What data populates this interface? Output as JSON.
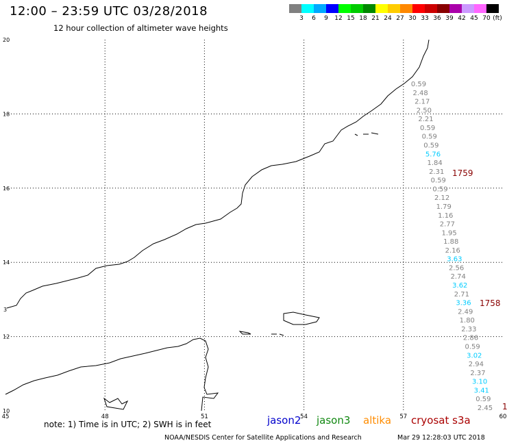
{
  "header": {
    "title": "12:00 – 23:59 UTC 03/28/2018",
    "subtitle": "12 hour collection of altimeter wave heights"
  },
  "legend": {
    "unit": "(ft)",
    "colors": [
      "#808080",
      "#00ffff",
      "#00aaff",
      "#0000ff",
      "#00ff00",
      "#00cc00",
      "#008800",
      "#ffff00",
      "#ffcc00",
      "#ff8800",
      "#ff0000",
      "#cc0000",
      "#880000",
      "#aa00aa",
      "#cc99ff",
      "#ff66ff",
      "#000000"
    ],
    "labels": [
      "3",
      "6",
      "9",
      "12",
      "15",
      "18",
      "21",
      "24",
      "27",
      "30",
      "33",
      "36",
      "39",
      "42",
      "45",
      "70"
    ]
  },
  "axes": {
    "x_ticks": [
      "45",
      "48",
      "51",
      "54",
      "57",
      "60"
    ],
    "y_ticks": [
      "10",
      "12",
      "14",
      "16",
      "18",
      "20"
    ],
    "left_edge_labels": [
      "3"
    ]
  },
  "track": {
    "color_gray": "#808080",
    "color_cyan": "#00ccff",
    "points": [
      {
        "value": "0.59",
        "color": "gray"
      },
      {
        "value": "2.48",
        "color": "gray"
      },
      {
        "value": "2.17",
        "color": "gray"
      },
      {
        "value": "2.50",
        "color": "gray"
      },
      {
        "value": "2.21",
        "color": "gray"
      },
      {
        "value": "0.59",
        "color": "gray"
      },
      {
        "value": "0.59",
        "color": "gray"
      },
      {
        "value": "0.59",
        "color": "gray"
      },
      {
        "value": "5.76",
        "color": "cyan"
      },
      {
        "value": "1.84",
        "color": "gray"
      },
      {
        "value": "2.31",
        "color": "gray"
      },
      {
        "value": "0.59",
        "color": "gray"
      },
      {
        "value": "0.59",
        "color": "gray"
      },
      {
        "value": "2.12",
        "color": "gray"
      },
      {
        "value": "1.79",
        "color": "gray"
      },
      {
        "value": "1.16",
        "color": "gray"
      },
      {
        "value": "2.77",
        "color": "gray"
      },
      {
        "value": "1.95",
        "color": "gray"
      },
      {
        "value": "1.88",
        "color": "gray"
      },
      {
        "value": "2.16",
        "color": "gray"
      },
      {
        "value": "3.63",
        "color": "cyan"
      },
      {
        "value": "2.56",
        "color": "gray"
      },
      {
        "value": "2.74",
        "color": "gray"
      },
      {
        "value": "3.62",
        "color": "cyan"
      },
      {
        "value": "2.71",
        "color": "gray"
      },
      {
        "value": "3.36",
        "color": "cyan"
      },
      {
        "value": "2.49",
        "color": "gray"
      },
      {
        "value": "1.80",
        "color": "gray"
      },
      {
        "value": "2.33",
        "color": "gray"
      },
      {
        "value": "2.86",
        "color": "gray"
      },
      {
        "value": "0.59",
        "color": "gray"
      },
      {
        "value": "3.02",
        "color": "cyan"
      },
      {
        "value": "2.94",
        "color": "gray"
      },
      {
        "value": "2.37",
        "color": "gray"
      },
      {
        "value": "3.10",
        "color": "cyan"
      },
      {
        "value": "3.41",
        "color": "cyan"
      },
      {
        "value": "0.59",
        "color": "gray"
      },
      {
        "value": "2.45",
        "color": "gray"
      }
    ],
    "time_labels": [
      {
        "text": "1759",
        "color": "#880000"
      },
      {
        "text": "1758",
        "color": "#880000"
      },
      {
        "text": "1",
        "color": "#880000"
      }
    ]
  },
  "footer": {
    "note": "note:  1) Time is in UTC;  2) SWH is in feet",
    "satellites": {
      "jason2": "jason2",
      "jason3": "jason3",
      "altika": "altika",
      "cryosat": "cryosat s3a"
    },
    "credit": "NOAA/NESDIS Center for Satellite Applications and Research",
    "timestamp": "Mar 29 12:28:03 UTC 2018"
  }
}
